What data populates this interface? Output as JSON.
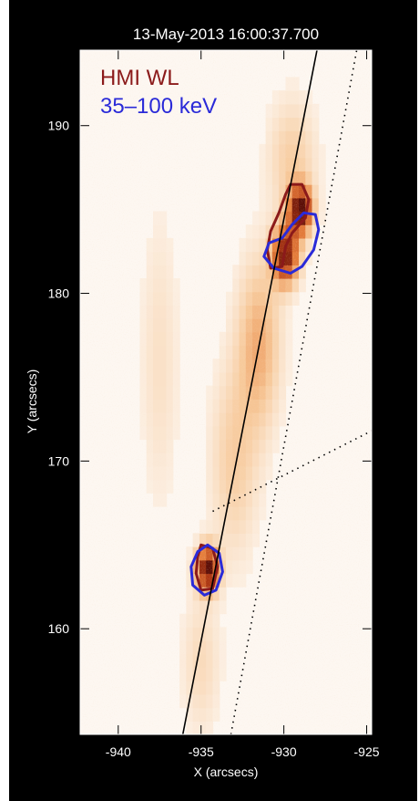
{
  "chart_data": {
    "type": "heatmap",
    "title": "13-May-2013 16:00:37.700",
    "xlabel": "X (arcsecs)",
    "ylabel": "Y (arcsecs)",
    "xlim": [
      -942.3,
      -924.7
    ],
    "ylim": [
      153.7,
      194.5
    ],
    "x_ticks": [
      -940,
      -935,
      -930,
      -925
    ],
    "y_ticks": [
      160,
      170,
      180,
      190
    ],
    "x_tick_labels": [
      "-940",
      "-935",
      "-930",
      "-925"
    ],
    "y_tick_labels": [
      "160",
      "170",
      "180",
      "190"
    ],
    "legend": [
      {
        "label": "HMI WL",
        "color": "#8b1a1a"
      },
      {
        "label": "35–100 keV",
        "color": "#2a2ad8"
      }
    ],
    "background_colormap": [
      "#fdf6ef",
      "#f7c99a",
      "#e8833f",
      "#b23a14",
      "#5c0f08"
    ],
    "intensity_sources": [
      {
        "x": -934.6,
        "y": 163.6,
        "sx": 0.45,
        "sy": 0.9,
        "peak": 1.0
      },
      {
        "x": -929.9,
        "y": 182.3,
        "sx": 0.55,
        "sy": 1.2,
        "peak": 0.9
      },
      {
        "x": -929.0,
        "y": 185.0,
        "sx": 0.5,
        "sy": 1.0,
        "peak": 0.95
      },
      {
        "x": -931.5,
        "y": 177.0,
        "sx": 0.9,
        "sy": 3.5,
        "peak": 0.35
      },
      {
        "x": -933.0,
        "y": 170.0,
        "sx": 1.0,
        "sy": 4.0,
        "peak": 0.22
      },
      {
        "x": -929.5,
        "y": 188.0,
        "sx": 1.0,
        "sy": 2.5,
        "peak": 0.22
      },
      {
        "x": -937.5,
        "y": 176.0,
        "sx": 0.8,
        "sy": 6.0,
        "peak": 0.12
      },
      {
        "x": -935.0,
        "y": 158.0,
        "sx": 0.8,
        "sy": 3.0,
        "peak": 0.15
      }
    ],
    "contours": [
      {
        "series": "HMI WL",
        "color": "#8b1a1a",
        "points": [
          [
            -929.6,
            186.5
          ],
          [
            -928.9,
            186.5
          ],
          [
            -928.5,
            185.6
          ],
          [
            -928.7,
            184.5
          ],
          [
            -929.5,
            183.6
          ],
          [
            -929.9,
            182.8
          ],
          [
            -930.1,
            181.6
          ],
          [
            -930.8,
            181.5
          ],
          [
            -931.0,
            182.6
          ],
          [
            -930.8,
            183.7
          ],
          [
            -930.3,
            184.8
          ],
          [
            -929.9,
            185.9
          ]
        ]
      },
      {
        "series": "HMI WL",
        "color": "#8b1a1a",
        "points": [
          [
            -935.0,
            165.0
          ],
          [
            -934.3,
            164.8
          ],
          [
            -934.0,
            163.7
          ],
          [
            -934.3,
            162.4
          ],
          [
            -935.0,
            162.3
          ],
          [
            -935.3,
            163.3
          ],
          [
            -935.2,
            164.3
          ]
        ]
      },
      {
        "series": "35–100 keV",
        "color": "#2a2ad8",
        "points": [
          [
            -928.8,
            184.8
          ],
          [
            -928.1,
            184.7
          ],
          [
            -927.9,
            183.8
          ],
          [
            -928.2,
            182.6
          ],
          [
            -928.9,
            181.6
          ],
          [
            -929.6,
            181.2
          ],
          [
            -930.6,
            181.5
          ],
          [
            -931.2,
            182.2
          ],
          [
            -930.9,
            183.0
          ],
          [
            -930.1,
            183.3
          ],
          [
            -929.5,
            184.1
          ]
        ]
      },
      {
        "series": "35–100 keV",
        "color": "#2a2ad8",
        "points": [
          [
            -934.6,
            165.0
          ],
          [
            -933.9,
            164.5
          ],
          [
            -933.7,
            163.4
          ],
          [
            -934.1,
            162.3
          ],
          [
            -934.8,
            162.0
          ],
          [
            -935.5,
            162.6
          ],
          [
            -935.6,
            163.7
          ],
          [
            -935.2,
            164.6
          ]
        ]
      }
    ],
    "lines": [
      {
        "style": "solid",
        "points": [
          [
            -936.1,
            153.7
          ],
          [
            -928.0,
            194.5
          ]
        ]
      },
      {
        "style": "dotted",
        "points": [
          [
            -933.2,
            153.7
          ],
          [
            -925.6,
            194.5
          ]
        ]
      },
      {
        "style": "dotted",
        "points": [
          [
            -934.3,
            167.0
          ],
          [
            -924.7,
            171.8
          ]
        ]
      }
    ],
    "grid": false
  }
}
